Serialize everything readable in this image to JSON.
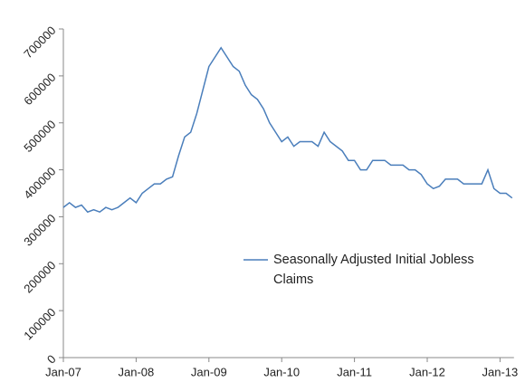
{
  "chart_data": {
    "type": "line",
    "categories": [
      "Jan-07",
      null,
      null,
      null,
      null,
      null,
      null,
      null,
      null,
      null,
      null,
      null,
      "Jan-08",
      null,
      null,
      null,
      null,
      null,
      null,
      null,
      null,
      null,
      null,
      null,
      "Jan-09",
      null,
      null,
      null,
      null,
      null,
      null,
      null,
      null,
      null,
      null,
      null,
      "Jan-10",
      null,
      null,
      null,
      null,
      null,
      null,
      null,
      null,
      null,
      null,
      null,
      "Jan-11",
      null,
      null,
      null,
      null,
      null,
      null,
      null,
      null,
      null,
      null,
      null,
      "Jan-12",
      null,
      null,
      null,
      null,
      null,
      null,
      null,
      null,
      null,
      null,
      null,
      "Jan-13",
      null,
      null
    ],
    "series": [
      {
        "name": "Seasonally Adjusted Initial Jobless Claims",
        "color": "#4a7ebb",
        "values": [
          320000,
          330000,
          320000,
          325000,
          310000,
          315000,
          310000,
          320000,
          315000,
          320000,
          330000,
          340000,
          330000,
          350000,
          360000,
          370000,
          370000,
          380000,
          385000,
          430000,
          470000,
          480000,
          520000,
          570000,
          620000,
          640000,
          660000,
          640000,
          620000,
          610000,
          580000,
          560000,
          550000,
          530000,
          500000,
          480000,
          460000,
          470000,
          450000,
          460000,
          460000,
          460000,
          450000,
          480000,
          460000,
          450000,
          440000,
          420000,
          420000,
          400000,
          400000,
          420000,
          420000,
          420000,
          410000,
          410000,
          410000,
          400000,
          400000,
          390000,
          370000,
          360000,
          365000,
          380000,
          380000,
          380000,
          370000,
          370000,
          370000,
          370000,
          400000,
          360000,
          350000,
          350000,
          340000
        ]
      }
    ],
    "ylim": [
      0,
      700000
    ],
    "yticks": [
      0,
      100000,
      200000,
      300000,
      400000,
      500000,
      600000,
      700000
    ]
  }
}
